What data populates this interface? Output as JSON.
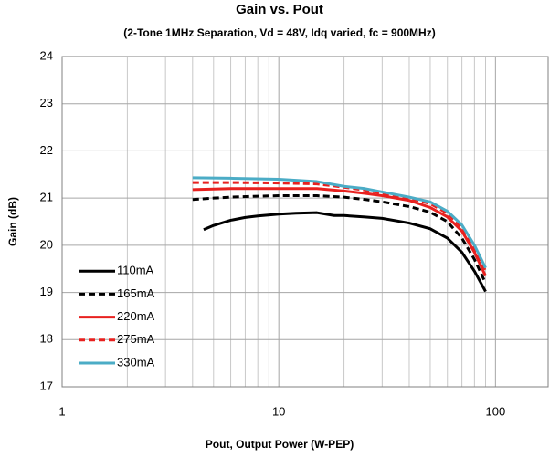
{
  "chart_data": {
    "type": "line",
    "title": "Gain vs. Pout",
    "subtitle": "(2-Tone 1MHz Separation, Vd = 48V, Idq varied, fc = 900MHz)",
    "x_label": "Pout, Output Power (W-PEP)",
    "y_label": "Gain (dB)",
    "xscale": "log",
    "xlim": [
      1,
      175
    ],
    "xticks": [
      1,
      10,
      100
    ],
    "xminorticks": [
      2,
      3,
      4,
      5,
      6,
      7,
      8,
      9,
      20,
      30,
      40,
      50,
      60,
      70,
      80,
      90
    ],
    "ylim": [
      17,
      24
    ],
    "yticks": [
      17,
      18,
      19,
      20,
      21,
      22,
      23,
      24
    ],
    "grid": true,
    "legend": "lower left",
    "series": [
      {
        "name": "110mA",
        "color": "#000000",
        "dash": false,
        "x": [
          4.5,
          5,
          6,
          7,
          8,
          10,
          12,
          15,
          18,
          20,
          25,
          30,
          40,
          50,
          60,
          70,
          80,
          90
        ],
        "values": [
          20.33,
          20.42,
          20.53,
          20.59,
          20.62,
          20.66,
          20.68,
          20.69,
          20.63,
          20.63,
          20.6,
          20.57,
          20.47,
          20.35,
          20.15,
          19.85,
          19.45,
          19.02
        ]
      },
      {
        "name": "165mA",
        "color": "#000000",
        "dash": true,
        "x": [
          4,
          5,
          6,
          8,
          10,
          15,
          20,
          25,
          30,
          40,
          50,
          60,
          70,
          80,
          90
        ],
        "values": [
          20.97,
          21.0,
          21.02,
          21.04,
          21.05,
          21.05,
          21.02,
          20.97,
          20.92,
          20.82,
          20.7,
          20.5,
          20.15,
          19.7,
          19.2
        ]
      },
      {
        "name": "220mA",
        "color": "#e8211f",
        "dash": false,
        "x": [
          4,
          6,
          10,
          15,
          20,
          25,
          30,
          40,
          50,
          60,
          70,
          80,
          90
        ],
        "values": [
          21.18,
          21.2,
          21.2,
          21.2,
          21.15,
          21.1,
          21.05,
          20.95,
          20.8,
          20.6,
          20.3,
          19.85,
          19.35
        ]
      },
      {
        "name": "275mA",
        "color": "#e8211f",
        "dash": true,
        "x": [
          4,
          6,
          10,
          15,
          20,
          25,
          30,
          40,
          50,
          60,
          70,
          80,
          90
        ],
        "values": [
          21.33,
          21.33,
          21.32,
          21.3,
          21.23,
          21.17,
          21.1,
          21.0,
          20.88,
          20.68,
          20.38,
          19.95,
          19.45
        ]
      },
      {
        "name": "330mA",
        "color": "#4bacc6",
        "dash": false,
        "x": [
          4,
          6,
          10,
          15,
          20,
          25,
          30,
          40,
          50,
          60,
          70,
          80,
          90
        ],
        "values": [
          21.43,
          21.42,
          21.4,
          21.35,
          21.25,
          21.2,
          21.13,
          21.02,
          20.92,
          20.72,
          20.43,
          20.0,
          19.52
        ]
      }
    ]
  }
}
